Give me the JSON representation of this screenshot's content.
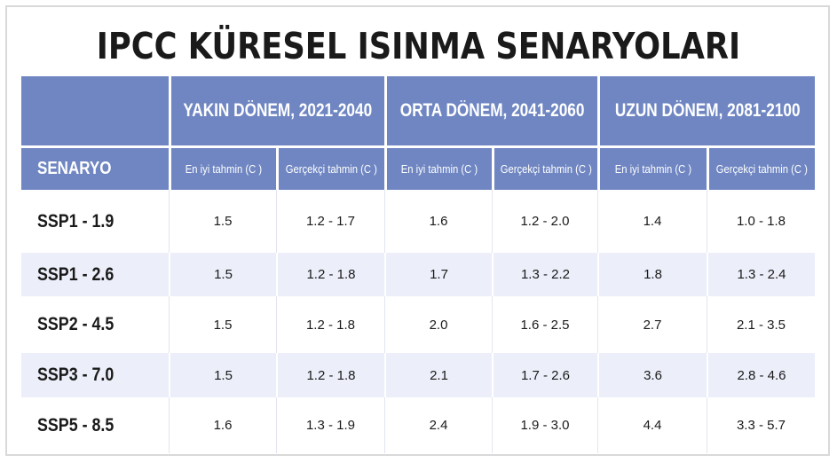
{
  "title": "IPCC KÜRESEL ISINMA SENARYOLARI",
  "header": {
    "scenario_label": "SENARYO",
    "periods": [
      "YAKIN DÖNEM, 2021-2040",
      "ORTA DÖNEM, 2041-2060",
      "UZUN DÖNEM, 2081-2100"
    ],
    "sub_best": "En iyi tahmin (C )",
    "sub_likely": "Gerçekçi tahmin (C )"
  },
  "rows": [
    {
      "name": "SSP1 - 1.9",
      "values": [
        "1.5",
        "1.2 - 1.7",
        "1.6",
        "1.2 - 2.0",
        "1.4",
        "1.0 - 1.8"
      ]
    },
    {
      "name": "SSP1 - 2.6",
      "values": [
        "1.5",
        "1.2 - 1.8",
        "1.7",
        "1.3 - 2.2",
        "1.8",
        "1.3 - 2.4"
      ]
    },
    {
      "name": "SSP2 - 4.5",
      "values": [
        "1.5",
        "1.2 - 1.8",
        "2.0",
        "1.6 - 2.5",
        "2.7",
        "2.1 - 3.5"
      ]
    },
    {
      "name": "SSP3 - 7.0",
      "values": [
        "1.5",
        "1.2 - 1.8",
        "2.1",
        "1.7 - 2.6",
        "3.6",
        "2.8 - 4.6"
      ]
    },
    {
      "name": "SSP5 - 8.5",
      "values": [
        "1.6",
        "1.3 - 1.9",
        "2.4",
        "1.9 - 3.0",
        "4.4",
        "3.3 - 5.7"
      ]
    }
  ],
  "colors": {
    "header_bg": "#6f86c2",
    "row_tint": "#eceef9"
  }
}
